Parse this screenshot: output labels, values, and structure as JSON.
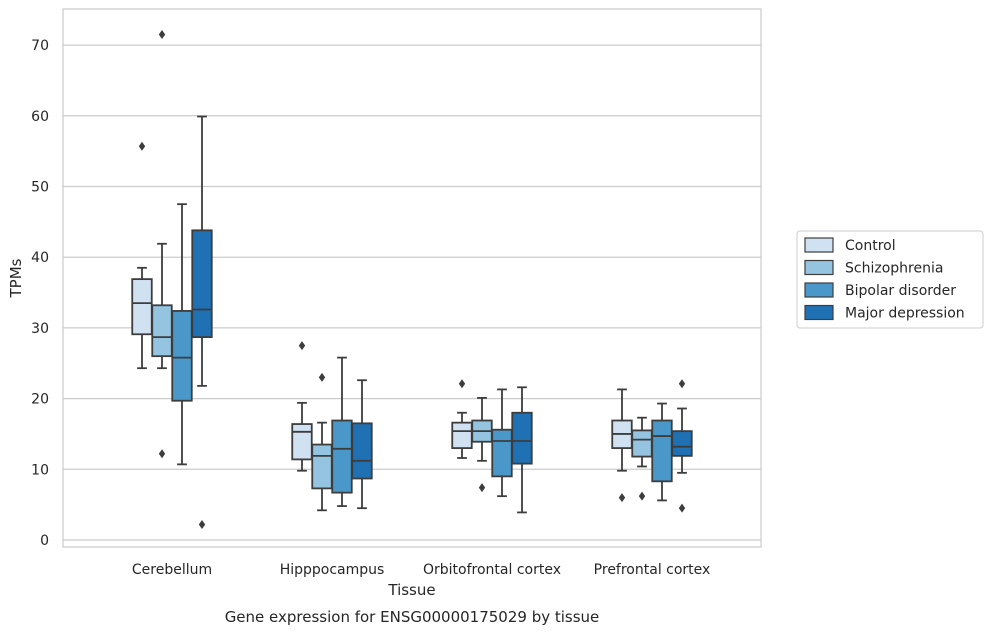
{
  "chart_data": {
    "type": "boxplot",
    "caption": "Gene expression for ENSG00000175029 by tissue",
    "xlabel": "Tissue",
    "ylabel": "TPMs",
    "ylim": [
      -1,
      75
    ],
    "yticks": [
      0,
      10,
      20,
      30,
      40,
      50,
      60,
      70
    ],
    "grid": true,
    "legend_position": "right",
    "categories": [
      "Cerebellum",
      "Hipppocampus",
      "Orbitofrontal cortex",
      "Prefrontal cortex"
    ],
    "series": [
      {
        "name": "Control",
        "color": "#d0e1f2",
        "boxes": [
          {
            "whislo": 24.3,
            "q1": 29.1,
            "med": 33.5,
            "q3": 36.9,
            "whishi": 38.5,
            "fliers": [
              55.7
            ]
          },
          {
            "whislo": 9.8,
            "q1": 11.4,
            "med": 15.3,
            "q3": 16.4,
            "whishi": 19.4,
            "fliers": [
              27.5
            ]
          },
          {
            "whislo": 11.6,
            "q1": 13.0,
            "med": 15.4,
            "q3": 16.6,
            "whishi": 18.0,
            "fliers": [
              22.1
            ]
          },
          {
            "whislo": 9.8,
            "q1": 13.0,
            "med": 15.0,
            "q3": 16.9,
            "whishi": 21.3,
            "fliers": [
              6.0
            ]
          }
        ]
      },
      {
        "name": "Schizophrenia",
        "color": "#94c4df",
        "boxes": [
          {
            "whislo": 24.3,
            "q1": 26.0,
            "med": 28.7,
            "q3": 33.2,
            "whishi": 41.9,
            "fliers": [
              71.5,
              12.2
            ]
          },
          {
            "whislo": 4.2,
            "q1": 7.3,
            "med": 11.9,
            "q3": 13.5,
            "whishi": 16.6,
            "fliers": [
              23.0
            ]
          },
          {
            "whislo": 11.2,
            "q1": 13.9,
            "med": 15.4,
            "q3": 16.9,
            "whishi": 20.1,
            "fliers": [
              7.4
            ]
          },
          {
            "whislo": 10.4,
            "q1": 11.8,
            "med": 14.2,
            "q3": 15.5,
            "whishi": 17.3,
            "fliers": [
              6.2
            ]
          }
        ]
      },
      {
        "name": "Bipolar disorder",
        "color": "#4a98c9",
        "boxes": [
          {
            "whislo": 10.7,
            "q1": 19.7,
            "med": 25.8,
            "q3": 32.4,
            "whishi": 47.5,
            "fliers": []
          },
          {
            "whislo": 4.8,
            "q1": 6.7,
            "med": 12.9,
            "q3": 16.9,
            "whishi": 25.8,
            "fliers": []
          },
          {
            "whislo": 6.2,
            "q1": 9.0,
            "med": 14.0,
            "q3": 15.6,
            "whishi": 21.3,
            "fliers": []
          },
          {
            "whislo": 5.6,
            "q1": 8.3,
            "med": 14.7,
            "q3": 16.9,
            "whishi": 19.3,
            "fliers": []
          }
        ]
      },
      {
        "name": "Major depression",
        "color": "#2070b4",
        "boxes": [
          {
            "whislo": 21.8,
            "q1": 28.7,
            "med": 32.6,
            "q3": 43.8,
            "whishi": 59.9,
            "fliers": [
              2.2
            ]
          },
          {
            "whislo": 4.5,
            "q1": 8.7,
            "med": 11.2,
            "q3": 16.5,
            "whishi": 22.6,
            "fliers": []
          },
          {
            "whislo": 3.9,
            "q1": 10.8,
            "med": 14.0,
            "q3": 18.0,
            "whishi": 21.6,
            "fliers": []
          },
          {
            "whislo": 9.5,
            "q1": 11.9,
            "med": 13.2,
            "q3": 15.4,
            "whishi": 18.6,
            "fliers": [
              22.1,
              4.5
            ]
          }
        ]
      }
    ]
  }
}
